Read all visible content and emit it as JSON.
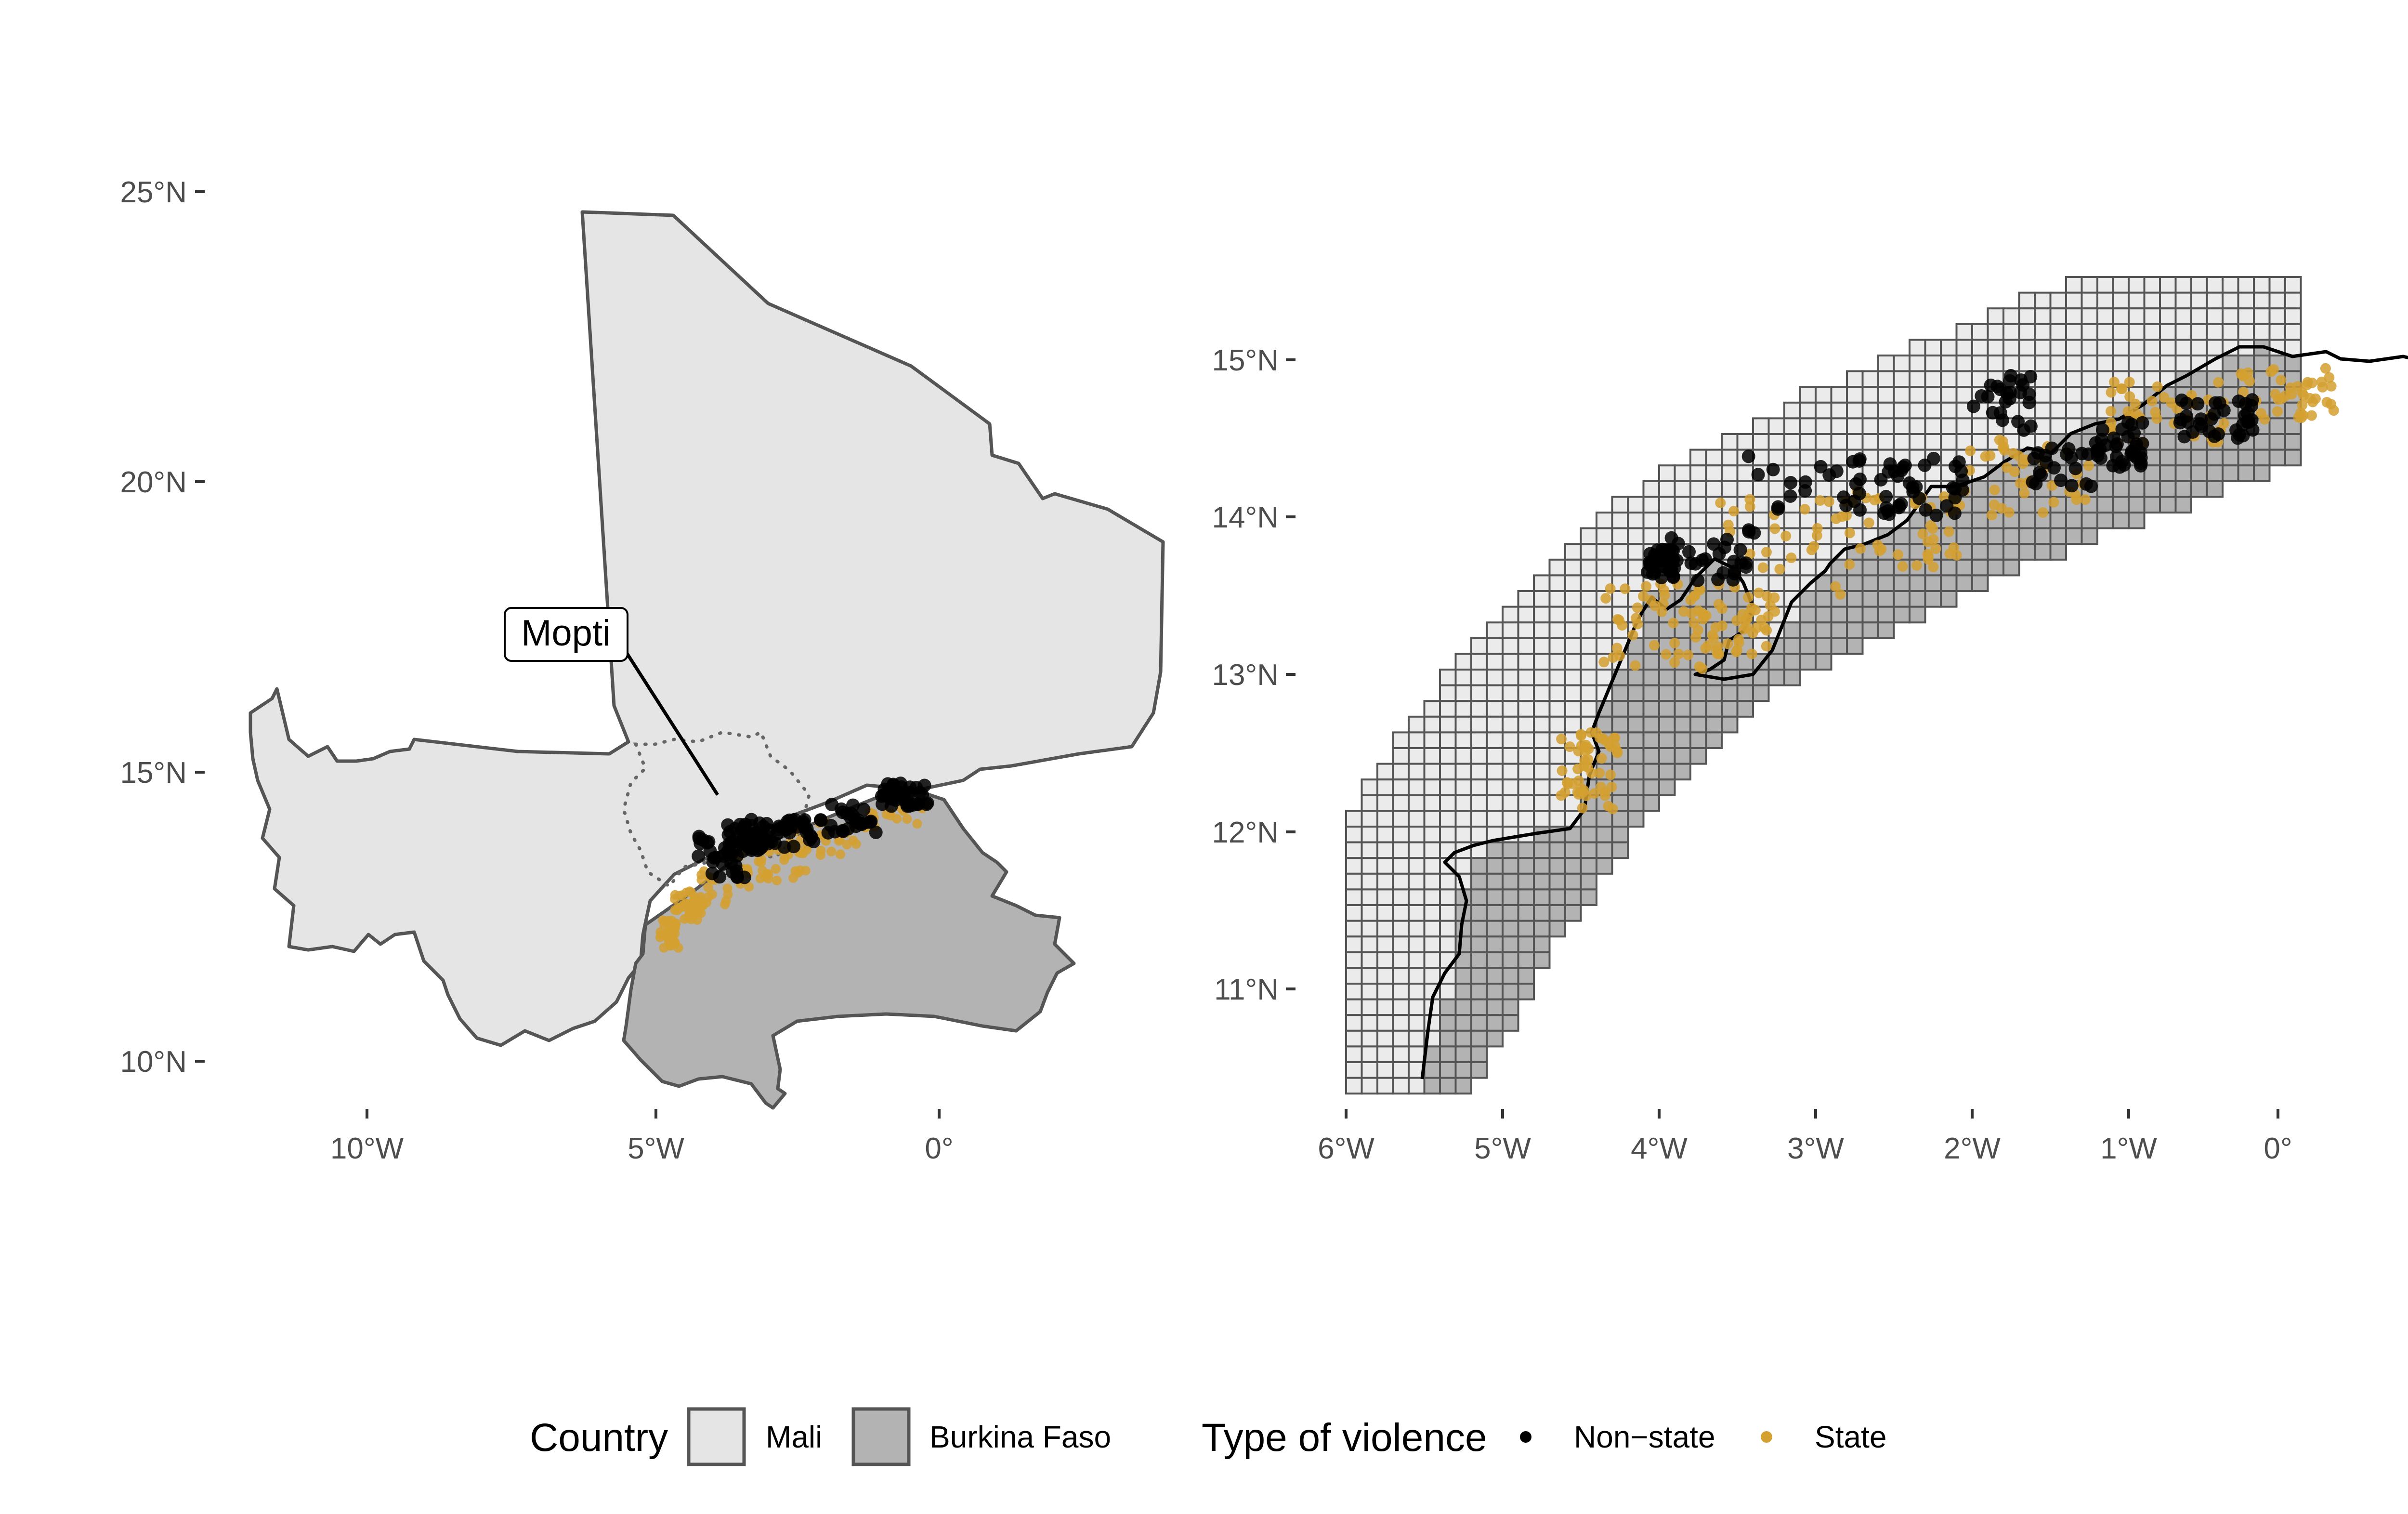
{
  "left_map": {
    "y_ticks": [
      "25°N",
      "20°N",
      "15°N",
      "10°N"
    ],
    "x_ticks": [
      "10°W",
      "5°W",
      "0°"
    ],
    "callout_label": "Mopti",
    "colors": {
      "mali": "#e5e5e5",
      "burkina_faso": "#b3b3b3",
      "border": "#555555"
    }
  },
  "right_map": {
    "y_ticks": [
      "15°N",
      "14°N",
      "13°N",
      "12°N",
      "11°N"
    ],
    "x_ticks": [
      "6°W",
      "5°W",
      "4°W",
      "3°W",
      "2°W",
      "1°W",
      "0°"
    ],
    "grid": true,
    "colors": {
      "mali_cell": "#ebebeb",
      "burkina_cell": "#b3b3b3",
      "cell_border": "#555555",
      "border_line": "#000000"
    }
  },
  "legend": {
    "country_title": "Country",
    "country_items": [
      {
        "label": "Mali",
        "color": "#e5e5e5"
      },
      {
        "label": "Burkina Faso",
        "color": "#b3b3b3"
      }
    ],
    "violence_title": "Type of violence",
    "violence_items": [
      {
        "label": "Non−state",
        "color": "#000000"
      },
      {
        "label": "State",
        "color": "#d4a030"
      }
    ]
  }
}
